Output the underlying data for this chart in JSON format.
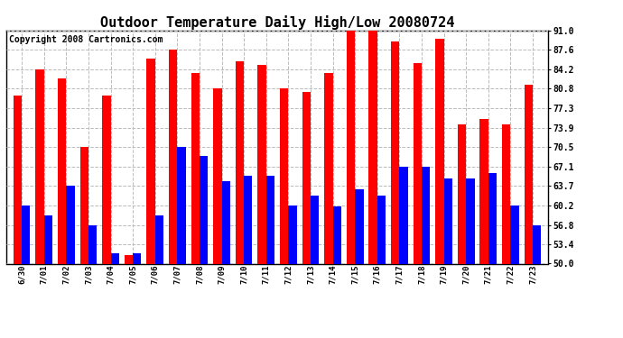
{
  "title": "Outdoor Temperature Daily High/Low 20080724",
  "copyright": "Copyright 2008 Cartronics.com",
  "dates": [
    "6/30",
    "7/01",
    "7/02",
    "7/03",
    "7/04",
    "7/05",
    "7/06",
    "7/07",
    "7/08",
    "7/09",
    "7/10",
    "7/11",
    "7/12",
    "7/13",
    "7/14",
    "7/15",
    "7/16",
    "7/17",
    "7/18",
    "7/19",
    "7/20",
    "7/21",
    "7/22",
    "7/23"
  ],
  "highs": [
    79.5,
    84.2,
    82.5,
    70.5,
    79.5,
    51.5,
    86.0,
    87.6,
    83.5,
    80.8,
    85.5,
    85.0,
    80.8,
    80.2,
    83.5,
    91.0,
    91.0,
    89.0,
    85.2,
    89.5,
    74.5,
    75.5,
    74.5,
    81.5
  ],
  "lows": [
    60.2,
    58.5,
    63.7,
    56.8,
    51.8,
    51.8,
    58.5,
    70.5,
    69.0,
    64.5,
    65.5,
    65.5,
    60.2,
    62.0,
    60.0,
    63.0,
    62.0,
    67.1,
    67.1,
    65.0,
    65.0,
    66.0,
    60.2,
    56.8
  ],
  "yticks": [
    50.0,
    53.4,
    56.8,
    60.2,
    63.7,
    67.1,
    70.5,
    73.9,
    77.3,
    80.8,
    84.2,
    87.6,
    91.0
  ],
  "ylim": [
    50.0,
    91.0
  ],
  "ybase": 50.0,
  "bar_color_high": "#ff0000",
  "bar_color_low": "#0000ff",
  "bg_color": "#ffffff",
  "plot_bg_color": "#ffffff",
  "grid_color": "#bbbbbb",
  "title_fontsize": 11,
  "copyright_fontsize": 7
}
